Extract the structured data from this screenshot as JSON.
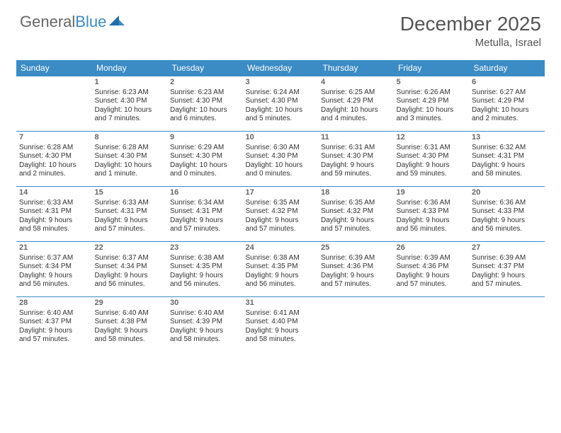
{
  "logo": {
    "part1": "General",
    "part2": "Blue"
  },
  "title": "December 2025",
  "location": "Metulla, Israel",
  "colors": {
    "header_bg": "#3b8bc4",
    "header_text": "#ffffff",
    "text": "#333333",
    "border": "#3b8bc4",
    "logo_gray": "#666666",
    "logo_blue": "#3b8bc4"
  },
  "day_headers": [
    "Sunday",
    "Monday",
    "Tuesday",
    "Wednesday",
    "Thursday",
    "Friday",
    "Saturday"
  ],
  "weeks": [
    [
      null,
      {
        "n": "1",
        "sr": "Sunrise: 6:23 AM",
        "ss": "Sunset: 4:30 PM",
        "d1": "Daylight: 10 hours",
        "d2": "and 7 minutes."
      },
      {
        "n": "2",
        "sr": "Sunrise: 6:23 AM",
        "ss": "Sunset: 4:30 PM",
        "d1": "Daylight: 10 hours",
        "d2": "and 6 minutes."
      },
      {
        "n": "3",
        "sr": "Sunrise: 6:24 AM",
        "ss": "Sunset: 4:30 PM",
        "d1": "Daylight: 10 hours",
        "d2": "and 5 minutes."
      },
      {
        "n": "4",
        "sr": "Sunrise: 6:25 AM",
        "ss": "Sunset: 4:29 PM",
        "d1": "Daylight: 10 hours",
        "d2": "and 4 minutes."
      },
      {
        "n": "5",
        "sr": "Sunrise: 6:26 AM",
        "ss": "Sunset: 4:29 PM",
        "d1": "Daylight: 10 hours",
        "d2": "and 3 minutes."
      },
      {
        "n": "6",
        "sr": "Sunrise: 6:27 AM",
        "ss": "Sunset: 4:29 PM",
        "d1": "Daylight: 10 hours",
        "d2": "and 2 minutes."
      }
    ],
    [
      {
        "n": "7",
        "sr": "Sunrise: 6:28 AM",
        "ss": "Sunset: 4:30 PM",
        "d1": "Daylight: 10 hours",
        "d2": "and 2 minutes."
      },
      {
        "n": "8",
        "sr": "Sunrise: 6:28 AM",
        "ss": "Sunset: 4:30 PM",
        "d1": "Daylight: 10 hours",
        "d2": "and 1 minute."
      },
      {
        "n": "9",
        "sr": "Sunrise: 6:29 AM",
        "ss": "Sunset: 4:30 PM",
        "d1": "Daylight: 10 hours",
        "d2": "and 0 minutes."
      },
      {
        "n": "10",
        "sr": "Sunrise: 6:30 AM",
        "ss": "Sunset: 4:30 PM",
        "d1": "Daylight: 10 hours",
        "d2": "and 0 minutes."
      },
      {
        "n": "11",
        "sr": "Sunrise: 6:31 AM",
        "ss": "Sunset: 4:30 PM",
        "d1": "Daylight: 9 hours",
        "d2": "and 59 minutes."
      },
      {
        "n": "12",
        "sr": "Sunrise: 6:31 AM",
        "ss": "Sunset: 4:30 PM",
        "d1": "Daylight: 9 hours",
        "d2": "and 59 minutes."
      },
      {
        "n": "13",
        "sr": "Sunrise: 6:32 AM",
        "ss": "Sunset: 4:31 PM",
        "d1": "Daylight: 9 hours",
        "d2": "and 58 minutes."
      }
    ],
    [
      {
        "n": "14",
        "sr": "Sunrise: 6:33 AM",
        "ss": "Sunset: 4:31 PM",
        "d1": "Daylight: 9 hours",
        "d2": "and 58 minutes."
      },
      {
        "n": "15",
        "sr": "Sunrise: 6:33 AM",
        "ss": "Sunset: 4:31 PM",
        "d1": "Daylight: 9 hours",
        "d2": "and 57 minutes."
      },
      {
        "n": "16",
        "sr": "Sunrise: 6:34 AM",
        "ss": "Sunset: 4:31 PM",
        "d1": "Daylight: 9 hours",
        "d2": "and 57 minutes."
      },
      {
        "n": "17",
        "sr": "Sunrise: 6:35 AM",
        "ss": "Sunset: 4:32 PM",
        "d1": "Daylight: 9 hours",
        "d2": "and 57 minutes."
      },
      {
        "n": "18",
        "sr": "Sunrise: 6:35 AM",
        "ss": "Sunset: 4:32 PM",
        "d1": "Daylight: 9 hours",
        "d2": "and 57 minutes."
      },
      {
        "n": "19",
        "sr": "Sunrise: 6:36 AM",
        "ss": "Sunset: 4:33 PM",
        "d1": "Daylight: 9 hours",
        "d2": "and 56 minutes."
      },
      {
        "n": "20",
        "sr": "Sunrise: 6:36 AM",
        "ss": "Sunset: 4:33 PM",
        "d1": "Daylight: 9 hours",
        "d2": "and 56 minutes."
      }
    ],
    [
      {
        "n": "21",
        "sr": "Sunrise: 6:37 AM",
        "ss": "Sunset: 4:34 PM",
        "d1": "Daylight: 9 hours",
        "d2": "and 56 minutes."
      },
      {
        "n": "22",
        "sr": "Sunrise: 6:37 AM",
        "ss": "Sunset: 4:34 PM",
        "d1": "Daylight: 9 hours",
        "d2": "and 56 minutes."
      },
      {
        "n": "23",
        "sr": "Sunrise: 6:38 AM",
        "ss": "Sunset: 4:35 PM",
        "d1": "Daylight: 9 hours",
        "d2": "and 56 minutes."
      },
      {
        "n": "24",
        "sr": "Sunrise: 6:38 AM",
        "ss": "Sunset: 4:35 PM",
        "d1": "Daylight: 9 hours",
        "d2": "and 56 minutes."
      },
      {
        "n": "25",
        "sr": "Sunrise: 6:39 AM",
        "ss": "Sunset: 4:36 PM",
        "d1": "Daylight: 9 hours",
        "d2": "and 57 minutes."
      },
      {
        "n": "26",
        "sr": "Sunrise: 6:39 AM",
        "ss": "Sunset: 4:36 PM",
        "d1": "Daylight: 9 hours",
        "d2": "and 57 minutes."
      },
      {
        "n": "27",
        "sr": "Sunrise: 6:39 AM",
        "ss": "Sunset: 4:37 PM",
        "d1": "Daylight: 9 hours",
        "d2": "and 57 minutes."
      }
    ],
    [
      {
        "n": "28",
        "sr": "Sunrise: 6:40 AM",
        "ss": "Sunset: 4:37 PM",
        "d1": "Daylight: 9 hours",
        "d2": "and 57 minutes."
      },
      {
        "n": "29",
        "sr": "Sunrise: 6:40 AM",
        "ss": "Sunset: 4:38 PM",
        "d1": "Daylight: 9 hours",
        "d2": "and 58 minutes."
      },
      {
        "n": "30",
        "sr": "Sunrise: 6:40 AM",
        "ss": "Sunset: 4:39 PM",
        "d1": "Daylight: 9 hours",
        "d2": "and 58 minutes."
      },
      {
        "n": "31",
        "sr": "Sunrise: 6:41 AM",
        "ss": "Sunset: 4:40 PM",
        "d1": "Daylight: 9 hours",
        "d2": "and 58 minutes."
      },
      null,
      null,
      null
    ]
  ]
}
